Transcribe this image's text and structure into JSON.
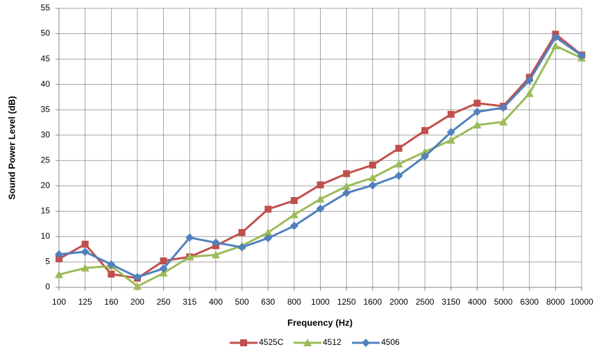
{
  "chart_data": {
    "type": "line",
    "x_label": "Frequency (Hz)",
    "y_label": "Sound Power Level (dB)",
    "categories": [
      "100",
      "125",
      "160",
      "200",
      "250",
      "315",
      "400",
      "500",
      "630",
      "800",
      "1000",
      "1250",
      "1600",
      "2000",
      "2500",
      "3150",
      "4000",
      "5000",
      "6300",
      "8000",
      "10000"
    ],
    "series": [
      {
        "name": "4525C",
        "color": "#c0504d",
        "marker": "square",
        "values": [
          5.6,
          8.5,
          2.6,
          1.8,
          5.2,
          6.0,
          8.2,
          10.8,
          15.4,
          17.1,
          20.2,
          22.4,
          24.1,
          27.4,
          30.9,
          34.1,
          36.3,
          35.7,
          41.4,
          49.9,
          45.8
        ]
      },
      {
        "name": "4512",
        "color": "#9bbb59",
        "marker": "triangle",
        "values": [
          2.5,
          3.8,
          4.2,
          0.2,
          2.8,
          6.0,
          6.4,
          8.2,
          10.8,
          14.3,
          17.4,
          19.9,
          21.6,
          24.3,
          26.7,
          29.0,
          32.0,
          32.6,
          38.2,
          47.6,
          45.2
        ]
      },
      {
        "name": "4506",
        "color": "#4f81bd",
        "marker": "diamond",
        "values": [
          6.5,
          7.0,
          4.5,
          2.0,
          3.7,
          9.8,
          8.8,
          7.9,
          9.7,
          12.1,
          15.5,
          18.6,
          20.1,
          22.0,
          25.8,
          30.6,
          34.6,
          35.4,
          40.8,
          49.3,
          45.7
        ]
      }
    ],
    "ylim": [
      0,
      55
    ],
    "yticks": [
      0,
      5,
      10,
      15,
      20,
      25,
      30,
      35,
      40,
      45,
      50,
      55
    ],
    "grid": true,
    "legend": "bottom"
  }
}
